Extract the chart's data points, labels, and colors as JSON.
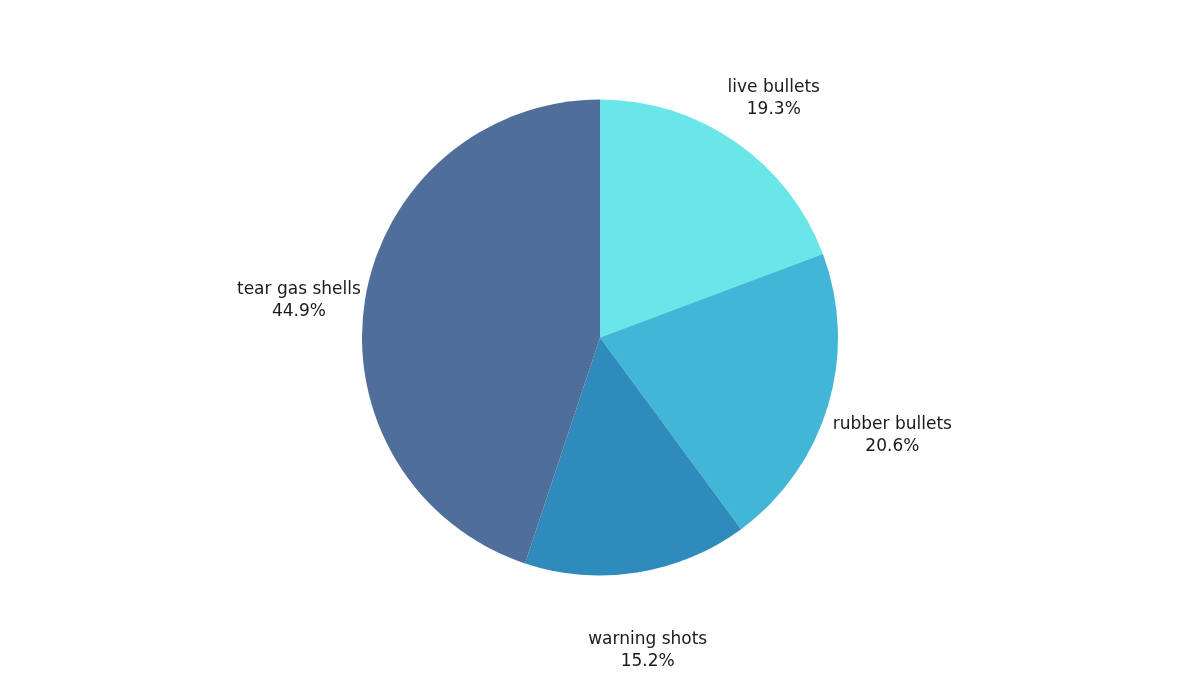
{
  "chart_data": {
    "type": "pie",
    "categories": [
      "live bullets",
      "rubber bullets",
      "warning shots",
      "tear gas shells"
    ],
    "values": [
      19.3,
      20.6,
      15.2,
      44.9
    ],
    "value_labels": [
      "19.3%",
      "20.6%",
      "15.2%",
      "44.9%"
    ],
    "colors": [
      "#6ae5e8",
      "#42b6d6",
      "#2e8bbc",
      "#4f6e99"
    ]
  }
}
